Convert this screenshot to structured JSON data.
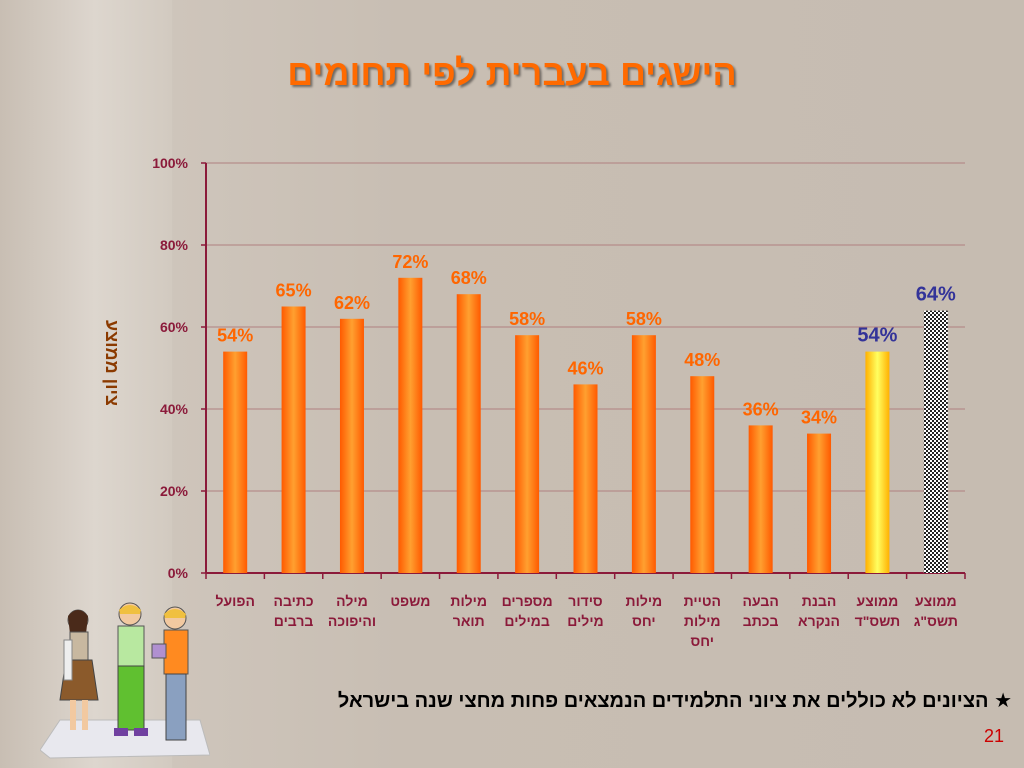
{
  "slide": {
    "title": "הישגים בעברית לפי תחומים",
    "footnote": "★ הציונים לא כוללים את ציוני התלמידים הנמצאים פחות מחצי שנה בישראל",
    "page_number": "21"
  },
  "colors": {
    "bar_orange": "#ff7a00",
    "bar_yellow": "#ffd000",
    "label_orange": "#ff6600",
    "label_blue": "#333399",
    "axis_text": "#8b1a3a",
    "ylabel": "#8b3a00",
    "grid": "#b08080"
  },
  "chart_data": {
    "type": "bar",
    "title": "הישגים בעברית לפי תחומים",
    "ylabel": "ציון ממוצע",
    "xlabel": "",
    "ylim": [
      0,
      100
    ],
    "yticks": [
      "0%",
      "20%",
      "40%",
      "60%",
      "80%",
      "100%"
    ],
    "grid": true,
    "categories": [
      "הפועל",
      "כתיבה ברבים",
      "מילה והיפוכה",
      "משפט",
      "מילות תואר",
      "מספרים במילים",
      "סידור מילים",
      "מילות יחס",
      "הטיית מילות יחס",
      "הבעה בכתב",
      "הבנת הנקרא",
      "ממוצע תשס\"ד",
      "ממוצע תשס\"ג"
    ],
    "values": [
      54,
      65,
      62,
      72,
      68,
      58,
      46,
      58,
      48,
      36,
      34,
      54,
      64
    ],
    "value_labels": [
      "54%",
      "65%",
      "62%",
      "72%",
      "68%",
      "58%",
      "46%",
      "58%",
      "48%",
      "36%",
      "34%",
      "54%",
      "64%"
    ],
    "bar_styles": [
      "orange",
      "orange",
      "orange",
      "orange",
      "orange",
      "orange",
      "orange",
      "orange",
      "orange",
      "orange",
      "orange",
      "yellow",
      "checker"
    ]
  }
}
